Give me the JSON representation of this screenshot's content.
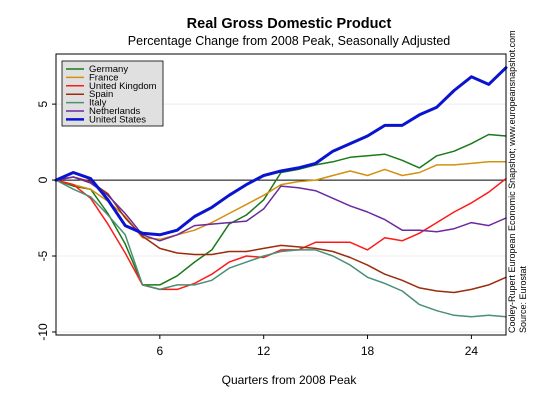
{
  "chart_data": {
    "type": "line",
    "title": "Real Gross Domestic Product",
    "subtitle": "Percentage Change from 2008 Peak, Seasonally Adjusted",
    "xlabel": "Quarters from 2008 Peak",
    "ylabel": "",
    "xlim": [
      0,
      26
    ],
    "ylim": [
      -10.2,
      8.3
    ],
    "x_ticks": [
      6,
      12,
      18,
      24
    ],
    "y_ticks": [
      -10,
      -5,
      0,
      5
    ],
    "grid": true,
    "legend_position": "top-left",
    "source_note": "Cooley-Rupert European Economic Snapshot; www.europeansnapshot.com",
    "source": "Source: Eurostat",
    "x": [
      0,
      1,
      2,
      3,
      4,
      5,
      6,
      7,
      8,
      9,
      10,
      11,
      12,
      13,
      14,
      15,
      16,
      17,
      18,
      19,
      20,
      21,
      22,
      23,
      24,
      25,
      26
    ],
    "series": [
      {
        "name": "Germany",
        "color": "#1a7a1a",
        "width": 1.5,
        "values": [
          0,
          -0.4,
          -0.6,
          -2.2,
          -4.2,
          -6.9,
          -6.9,
          -6.3,
          -5.4,
          -4.6,
          -2.9,
          -2.3,
          -1.3,
          0.5,
          0.7,
          1.0,
          1.2,
          1.5,
          1.6,
          1.7,
          1.3,
          0.8,
          1.6,
          1.9,
          2.4,
          3.0,
          2.9
        ]
      },
      {
        "name": "France",
        "color": "#d4900f",
        "width": 1.5,
        "values": [
          0,
          -0.3,
          -0.6,
          -1.4,
          -2.4,
          -3.8,
          -3.9,
          -3.6,
          -3.3,
          -2.8,
          -2.2,
          -1.6,
          -1.0,
          -0.3,
          -0.1,
          0.0,
          0.3,
          0.6,
          0.3,
          0.7,
          0.3,
          0.5,
          1.0,
          1.0,
          1.1,
          1.2,
          1.2
        ]
      },
      {
        "name": "United Kingdom",
        "color": "#ff1a1a",
        "width": 1.5,
        "values": [
          0,
          -0.3,
          -1.2,
          -2.9,
          -4.8,
          -6.9,
          -7.2,
          -7.2,
          -6.8,
          -6.2,
          -5.4,
          -5.0,
          -5.1,
          -4.6,
          -4.6,
          -4.1,
          -4.1,
          -4.1,
          -4.6,
          -3.8,
          -4.0,
          -3.5,
          -2.8,
          -2.1,
          -1.5,
          -0.8,
          0.1
        ]
      },
      {
        "name": "Spain",
        "color": "#9a2c0c",
        "width": 1.5,
        "values": [
          0,
          0.2,
          -0.1,
          -0.9,
          -2.5,
          -3.7,
          -4.5,
          -4.8,
          -4.9,
          -4.9,
          -4.7,
          -4.7,
          -4.5,
          -4.3,
          -4.4,
          -4.5,
          -4.7,
          -5.1,
          -5.6,
          -6.2,
          -6.6,
          -7.1,
          -7.3,
          -7.4,
          -7.2,
          -6.9,
          -6.4
        ]
      },
      {
        "name": "Italy",
        "color": "#4a8f78",
        "width": 1.5,
        "values": [
          0,
          -0.6,
          -1.1,
          -2.3,
          -3.6,
          -6.9,
          -7.2,
          -6.9,
          -6.9,
          -6.6,
          -5.8,
          -5.4,
          -5.0,
          -4.7,
          -4.6,
          -4.6,
          -5.0,
          -5.6,
          -6.4,
          -6.8,
          -7.3,
          -8.2,
          -8.6,
          -8.9,
          -9.0,
          -8.9,
          -9.0
        ]
      },
      {
        "name": "Netherlands",
        "color": "#6a2aa0",
        "width": 1.5,
        "values": [
          0,
          0.2,
          -0.2,
          -1.0,
          -2.2,
          -3.6,
          -4.0,
          -3.6,
          -3.0,
          -2.9,
          -2.8,
          -2.7,
          -1.9,
          -0.4,
          -0.5,
          -0.7,
          -1.2,
          -1.7,
          -2.1,
          -2.6,
          -3.3,
          -3.3,
          -3.4,
          -3.2,
          -2.8,
          -3.0,
          -2.5
        ]
      },
      {
        "name": "United States",
        "color": "#0a14d0",
        "width": 3,
        "values": [
          0,
          0.5,
          0.1,
          -1.3,
          -3.0,
          -3.5,
          -3.6,
          -3.3,
          -2.4,
          -1.8,
          -1.0,
          -0.3,
          0.3,
          0.6,
          0.8,
          1.1,
          1.9,
          2.4,
          2.9,
          3.6,
          3.6,
          4.3,
          4.8,
          5.9,
          6.8,
          6.3,
          7.4
        ]
      }
    ]
  }
}
